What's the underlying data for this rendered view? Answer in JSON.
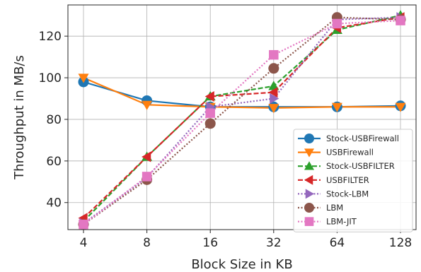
{
  "chart_data": {
    "type": "line",
    "xlabel": "Block Size in KB",
    "ylabel": "Throughput in MB/s",
    "categories": [
      "4",
      "8",
      "16",
      "32",
      "64",
      "128"
    ],
    "ylim": [
      27,
      135
    ],
    "yticks": [
      40,
      60,
      80,
      100,
      120
    ],
    "grid": true,
    "legend_position": "lower-right",
    "series": [
      {
        "name": "Stock-USBFirewall",
        "values": [
          98,
          89,
          86,
          86,
          86,
          86.5
        ],
        "color": "#1f77b4",
        "marker": "circle",
        "dash": "solid"
      },
      {
        "name": "USBFirewall",
        "values": [
          100,
          87,
          86,
          85.5,
          86,
          86
        ],
        "color": "#ff7f0e",
        "marker": "triangle-down",
        "dash": "solid"
      },
      {
        "name": "Stock-USBFILTER",
        "values": [
          31,
          62,
          91,
          96,
          123,
          130
        ],
        "color": "#2ca02c",
        "marker": "triangle-up",
        "dash": "dashed"
      },
      {
        "name": "USBFILTER",
        "values": [
          32.5,
          62,
          91,
          93,
          124,
          129
        ],
        "color": "#d62728",
        "marker": "triangle-left",
        "dash": "dashed"
      },
      {
        "name": "Stock-LBM",
        "values": [
          30,
          52,
          86,
          90,
          128,
          129
        ],
        "color": "#9467bd",
        "marker": "triangle-right",
        "dash": "dotted"
      },
      {
        "name": "LBM",
        "values": [
          29.5,
          51,
          78,
          104.5,
          129,
          128
        ],
        "color": "#8c564b",
        "marker": "circle",
        "dash": "dotted"
      },
      {
        "name": "LBM-JIT",
        "values": [
          29.5,
          52.5,
          83,
          111,
          126,
          127.5
        ],
        "color": "#e377c2",
        "marker": "square",
        "dash": "dotted"
      }
    ]
  }
}
